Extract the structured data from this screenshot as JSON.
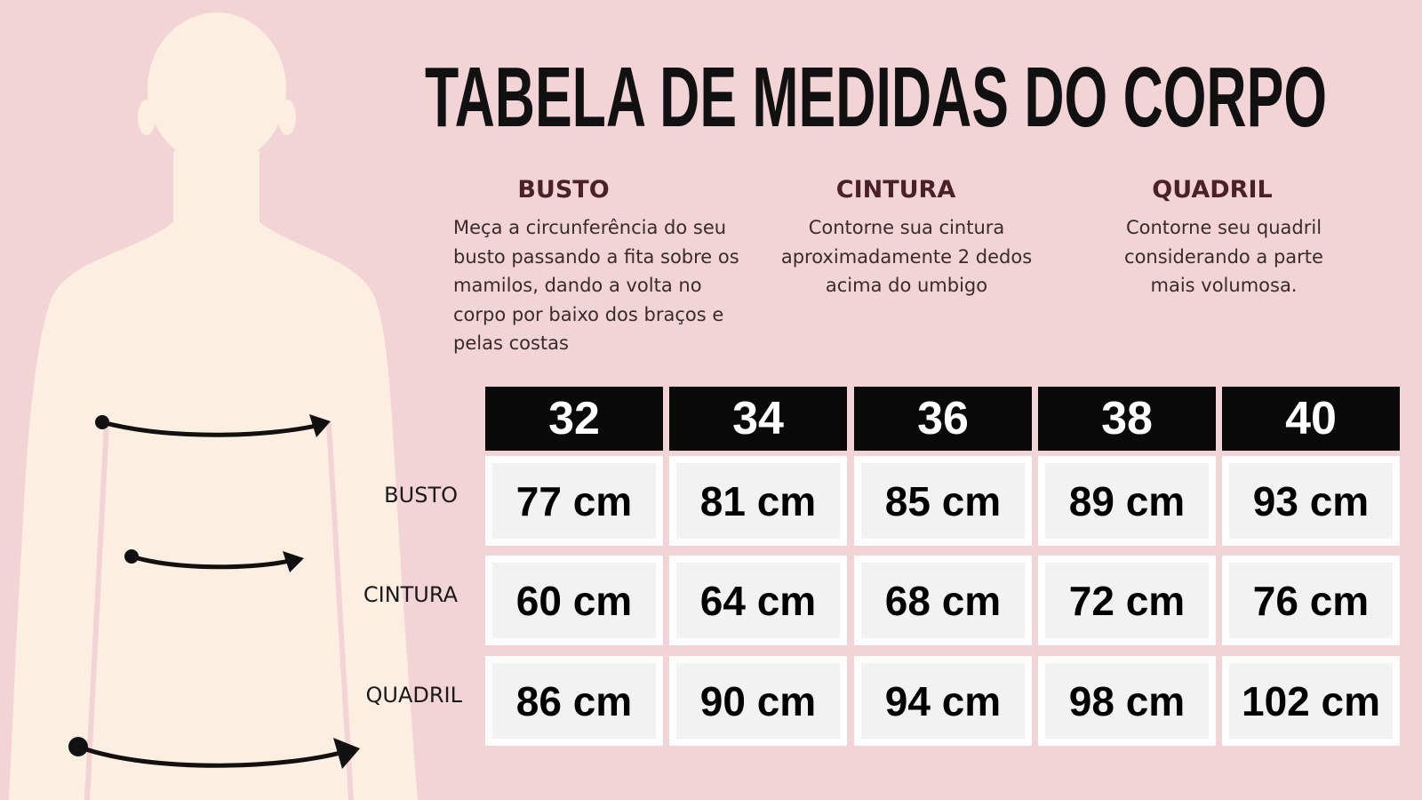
{
  "title": "TABELA DE MEDIDAS DO CORPO",
  "descriptions": [
    {
      "heading": "BUSTO",
      "text": "Meça a circunferência do seu busto passando a fita sobre os mamilos, dando a volta no corpo por baixo dos braços e pelas costas"
    },
    {
      "heading": "CINTURA",
      "text": "Contorne sua cintura aproximadamente 2 dedos acima do umbigo"
    },
    {
      "heading": "QUADRIL",
      "text": "Contorne seu quadril considerando a parte mais volumosa."
    }
  ],
  "table": {
    "header": [
      "32",
      "34",
      "36",
      "38",
      "40"
    ],
    "rows": [
      {
        "label": "BUSTO",
        "cells": [
          "77 cm",
          "81 cm",
          "85 cm",
          "89 cm",
          "93 cm"
        ]
      },
      {
        "label": "CINTURA",
        "cells": [
          "60 cm",
          "64 cm",
          "68 cm",
          "72 cm",
          "76 cm"
        ]
      },
      {
        "label": "QUADRIL",
        "cells": [
          "86 cm",
          "90 cm",
          "94 cm",
          "98 cm",
          "102 cm"
        ]
      }
    ]
  }
}
